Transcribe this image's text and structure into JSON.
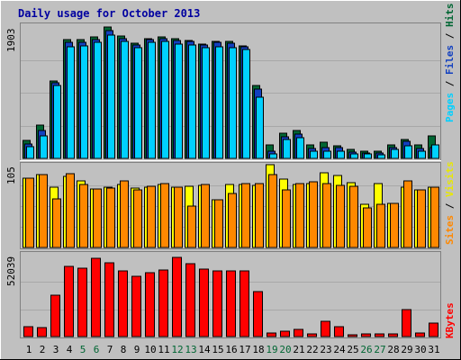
{
  "title": "Daily usage for October 2013",
  "colors": {
    "background": "#c0c0c0",
    "title": "#0000a0",
    "hits": "#006633",
    "files": "#1240c0",
    "pages": "#00d0ff",
    "visits": "#ffff00",
    "sites": "#ff8800",
    "kbytes": "#ff0000",
    "weekend_label": "#006633",
    "weekday_label": "#000000"
  },
  "legend": {
    "top_pages": "Pages",
    "top_files": "Files",
    "top_hits": "Hits",
    "top_sep1": " / ",
    "top_sep2": " / ",
    "mid_sites": "Sites",
    "mid_visits": "Visits",
    "mid_sep": " / ",
    "bot_kbytes": "KBytes"
  },
  "chart_data": [
    {
      "type": "bar",
      "name": "hits-files-pages",
      "max_label": "1903",
      "ylim": [
        0,
        1903
      ],
      "categories": [
        "1",
        "2",
        "3",
        "4",
        "5",
        "6",
        "7",
        "8",
        "9",
        "10",
        "11",
        "12",
        "13",
        "14",
        "15",
        "16",
        "17",
        "18",
        "19",
        "20",
        "21",
        "22",
        "23",
        "24",
        "25",
        "26",
        "27",
        "28",
        "29",
        "30",
        "31"
      ],
      "weekend_days": [
        "5",
        "6",
        "12",
        "13",
        "19",
        "20",
        "26",
        "27"
      ],
      "series": [
        {
          "name": "Hits",
          "values": [
            260,
            480,
            1120,
            1720,
            1720,
            1760,
            1900,
            1770,
            1670,
            1740,
            1760,
            1740,
            1710,
            1660,
            1700,
            1690,
            1630,
            1050,
            190,
            370,
            400,
            200,
            240,
            180,
            130,
            110,
            100,
            190,
            280,
            190,
            320
          ]
        },
        {
          "name": "Files",
          "values": [
            210,
            400,
            1100,
            1680,
            1680,
            1720,
            1850,
            1740,
            1640,
            1720,
            1740,
            1710,
            1690,
            1640,
            1680,
            1670,
            1610,
            1000,
            110,
            310,
            350,
            140,
            160,
            150,
            90,
            80,
            80,
            150,
            250,
            140,
            160
          ]
        },
        {
          "name": "Pages",
          "values": [
            170,
            330,
            1060,
            1620,
            1630,
            1680,
            1790,
            1690,
            1600,
            1680,
            1700,
            1660,
            1640,
            1600,
            1620,
            1600,
            1580,
            890,
            60,
            280,
            300,
            100,
            110,
            100,
            60,
            60,
            50,
            130,
            180,
            110,
            190
          ]
        }
      ]
    },
    {
      "type": "bar",
      "name": "visits-sites",
      "max_label": "105",
      "ylim": [
        0,
        105
      ],
      "categories": [
        "1",
        "2",
        "3",
        "4",
        "5",
        "6",
        "7",
        "8",
        "9",
        "10",
        "11",
        "12",
        "13",
        "14",
        "15",
        "16",
        "17",
        "18",
        "19",
        "20",
        "21",
        "22",
        "23",
        "24",
        "25",
        "26",
        "27",
        "28",
        "29",
        "30",
        "31"
      ],
      "series": [
        {
          "name": "Sites",
          "values": [
            88,
            92,
            62,
            94,
            80,
            74,
            75,
            85,
            73,
            78,
            81,
            77,
            53,
            80,
            60,
            69,
            81,
            81,
            92,
            73,
            81,
            83,
            81,
            79,
            78,
            50,
            55,
            56,
            84,
            73,
            77
          ]
        },
        {
          "name": "Visits",
          "values": [
            88,
            92,
            77,
            90,
            84,
            74,
            76,
            80,
            75,
            77,
            80,
            77,
            78,
            79,
            61,
            80,
            80,
            79,
            105,
            87,
            80,
            81,
            95,
            91,
            82,
            55,
            81,
            56,
            77,
            73,
            76
          ]
        }
      ]
    },
    {
      "type": "bar",
      "name": "kbytes",
      "max_label": "52039",
      "ylim": [
        0,
        52039
      ],
      "categories": [
        "1",
        "2",
        "3",
        "4",
        "5",
        "6",
        "7",
        "8",
        "9",
        "10",
        "11",
        "12",
        "13",
        "14",
        "15",
        "16",
        "17",
        "18",
        "19",
        "20",
        "21",
        "22",
        "23",
        "24",
        "25",
        "26",
        "27",
        "28",
        "29",
        "30",
        "31"
      ],
      "series": [
        {
          "name": "KBytes",
          "values": [
            6500,
            5500,
            26500,
            44500,
            43500,
            49500,
            47000,
            42000,
            38500,
            40500,
            42500,
            50500,
            46500,
            43000,
            42000,
            42000,
            42000,
            28500,
            2300,
            3300,
            4500,
            1900,
            9500,
            6500,
            1200,
            1500,
            1500,
            2000,
            17000,
            2300,
            8500
          ]
        }
      ]
    }
  ]
}
